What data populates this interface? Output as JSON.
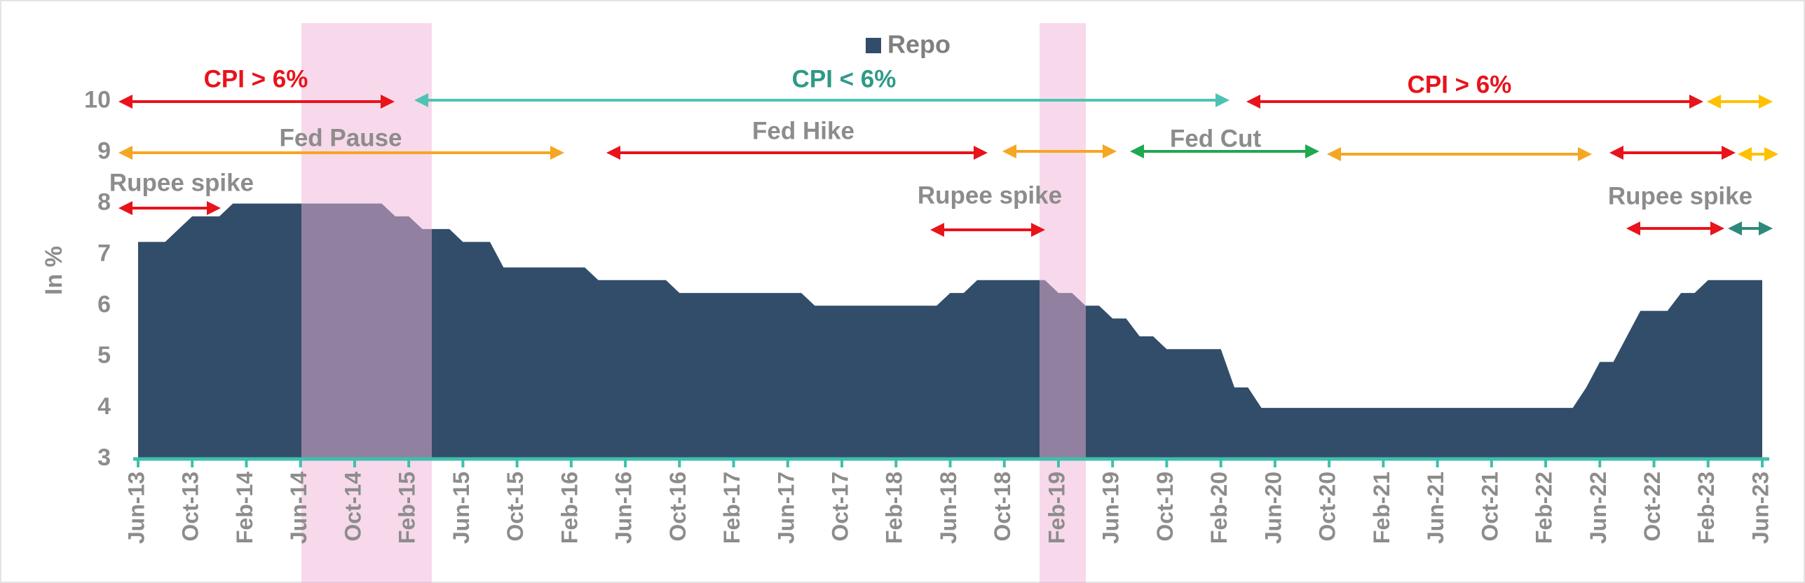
{
  "chart_data": {
    "type": "area",
    "y_label": "In %",
    "categories": [
      "Jun-13",
      null,
      null,
      null,
      "Oct-13",
      null,
      null,
      null,
      "Feb-14",
      null,
      null,
      null,
      "Jun-14",
      null,
      null,
      null,
      "Oct-14",
      null,
      null,
      null,
      "Feb-15",
      null,
      null,
      null,
      "Jun-15",
      null,
      null,
      null,
      "Oct-15",
      null,
      null,
      null,
      "Feb-16",
      null,
      null,
      null,
      "Jun-16",
      null,
      null,
      null,
      "Oct-16",
      null,
      null,
      null,
      "Feb-17",
      null,
      null,
      null,
      "Jun-17",
      null,
      null,
      null,
      "Oct-17",
      null,
      null,
      null,
      "Feb-18",
      null,
      null,
      null,
      "Jun-18",
      null,
      null,
      null,
      "Oct-18",
      null,
      null,
      null,
      "Feb-19",
      null,
      null,
      null,
      "Jun-19",
      null,
      null,
      null,
      "Oct-19",
      null,
      null,
      null,
      "Feb-20",
      null,
      null,
      null,
      "Jun-20",
      null,
      null,
      null,
      "Oct-20",
      null,
      null,
      null,
      "Feb-21",
      null,
      null,
      null,
      "Jun-21",
      null,
      null,
      null,
      "Oct-21",
      null,
      null,
      null,
      "Feb-22",
      null,
      null,
      null,
      "Jun-22",
      null,
      null,
      null,
      "Oct-22",
      null,
      null,
      null,
      "Feb-23",
      null,
      null,
      null,
      "Jun-23"
    ],
    "series": [
      {
        "name": "Repo",
        "color": "#324d69",
        "values": [
          7.25,
          7.25,
          7.25,
          7.5,
          7.75,
          7.75,
          7.75,
          8,
          8,
          8,
          8,
          8,
          8,
          8,
          8,
          8,
          8,
          8,
          8,
          7.75,
          7.75,
          7.5,
          7.5,
          7.5,
          7.25,
          7.25,
          7.25,
          6.75,
          6.75,
          6.75,
          6.75,
          6.75,
          6.75,
          6.75,
          6.5,
          6.5,
          6.5,
          6.5,
          6.5,
          6.5,
          6.25,
          6.25,
          6.25,
          6.25,
          6.25,
          6.25,
          6.25,
          6.25,
          6.25,
          6.25,
          6,
          6,
          6,
          6,
          6,
          6,
          6,
          6,
          6,
          6,
          6.25,
          6.25,
          6.5,
          6.5,
          6.5,
          6.5,
          6.5,
          6.5,
          6.25,
          6.25,
          6,
          6,
          5.75,
          5.75,
          5.4,
          5.4,
          5.15,
          5.15,
          5.15,
          5.15,
          5.15,
          4.4,
          4.4,
          4,
          4,
          4,
          4,
          4,
          4,
          4,
          4,
          4,
          4,
          4,
          4,
          4,
          4,
          4,
          4,
          4,
          4,
          4,
          4,
          4,
          4,
          4,
          4,
          4.4,
          4.9,
          4.9,
          5.4,
          5.9,
          5.9,
          5.9,
          6.25,
          6.25,
          6.5,
          6.5,
          6.5,
          6.5,
          6.5
        ]
      }
    ],
    "ylim": [
      3,
      11
    ],
    "yticks": [
      3,
      4,
      5,
      6,
      7,
      8,
      9,
      10
    ],
    "legend": "top",
    "annotations": [
      "CPI > 6%",
      "CPI < 6%",
      "CPI > 6%",
      "Fed Pause",
      "Fed Hike",
      "Fed Cut",
      "Rupee spike",
      "Rupee spike",
      "Rupee spike"
    ]
  }
}
